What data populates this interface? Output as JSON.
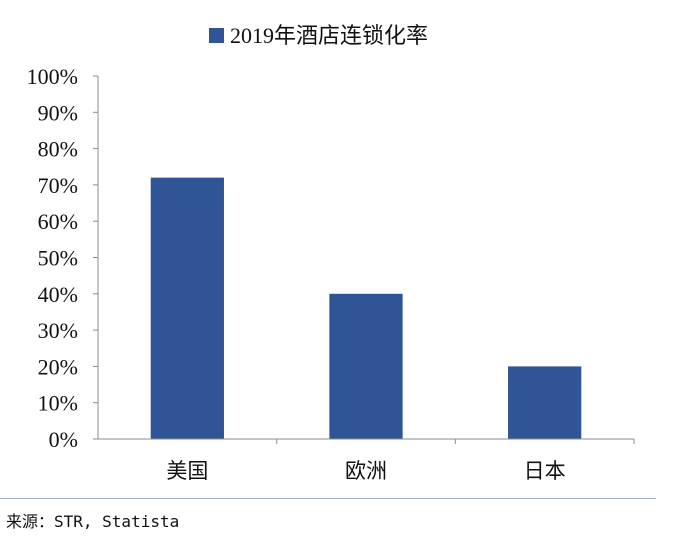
{
  "chart_data": {
    "type": "bar",
    "title": "",
    "xlabel": "",
    "ylabel": "",
    "categories": [
      "美国",
      "欧洲",
      "日本"
    ],
    "series": [
      {
        "name": "2019年酒店连锁化率",
        "values": [
          72,
          40,
          20
        ],
        "color": "#2f5597"
      }
    ],
    "ylim": [
      0,
      100
    ],
    "y_ticks": [
      "0%",
      "10%",
      "20%",
      "30%",
      "40%",
      "50%",
      "60%",
      "70%",
      "80%",
      "90%",
      "100%"
    ],
    "grid": false,
    "legend": "top-center"
  },
  "source": "来源：STR, Statista"
}
